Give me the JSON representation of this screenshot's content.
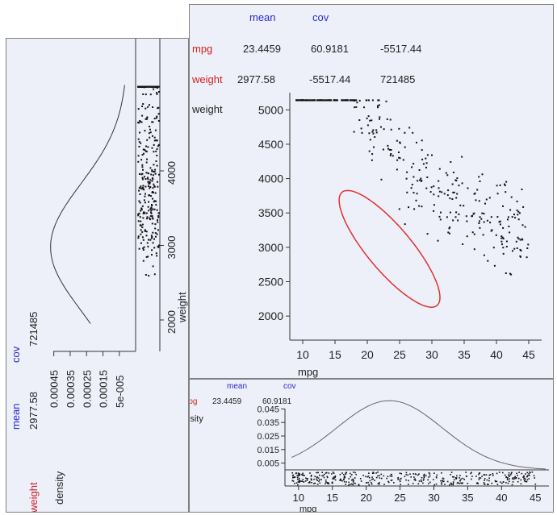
{
  "colors": {
    "background": "#eef0f9",
    "mean_label": "#2a2ad0",
    "variable_label": "#d02020",
    "text": "#222222",
    "ellipse": "#e03030",
    "points": "#111111"
  },
  "chart_data": [
    {
      "id": "weight-density",
      "type": "line",
      "orientation": "rotated",
      "header": {
        "mean_label": "mean",
        "cov_label": "cov",
        "variable": "weight",
        "mean": "2977.58",
        "cov": "721485"
      },
      "density_axis": {
        "label": "density",
        "ticks": [
          "0.00045",
          "0.00035",
          "0.00025",
          "0.00015",
          "5e-005"
        ],
        "tick_values": [
          0.00045,
          0.00035,
          0.00025,
          0.00015,
          5e-05
        ]
      },
      "value_axis": {
        "label": "weight",
        "ticks": [
          "2000",
          "3000",
          "4000"
        ],
        "tick_values": [
          2000,
          3000,
          4000
        ],
        "range": [
          1600,
          5200
        ]
      },
      "curve": {
        "mean": 2977.58,
        "sd": 849.4
      },
      "rug": "weight values of all cars"
    },
    {
      "id": "mpg-weight-scatter",
      "type": "scatter",
      "header": {
        "mean_label": "mean",
        "cov_label": "cov",
        "rows": [
          {
            "name": "mpg",
            "mean": "23.4459",
            "cov1": "60.9181",
            "cov2": "-5517.44"
          },
          {
            "name": "weight",
            "mean": "2977.58",
            "cov1": "-5517.44",
            "cov2": "721485"
          }
        ]
      },
      "xlabel": "mpg",
      "ylabel": "weight",
      "xticks": [
        "10",
        "15",
        "20",
        "25",
        "30",
        "35",
        "40",
        "45"
      ],
      "xtick_values": [
        10,
        15,
        20,
        25,
        30,
        35,
        40,
        45
      ],
      "yticks": [
        "2000",
        "2500",
        "3000",
        "3500",
        "4000",
        "4500",
        "5000"
      ],
      "ytick_values": [
        2000,
        2500,
        3000,
        3500,
        4000,
        4500,
        5000
      ],
      "xlim": [
        8,
        47
      ],
      "ylim": [
        1650,
        5250
      ],
      "ellipse": {
        "cx": 23.4459,
        "cy": 2977.58,
        "sxx": 60.9181,
        "sxy": -5517.44,
        "syy": 721485,
        "k": 1
      }
    },
    {
      "id": "mpg-density",
      "type": "line",
      "header": {
        "mean_label": "mean",
        "cov_label": "cov",
        "variable": "mpg",
        "mean": "23.4459",
        "cov": "60.9181"
      },
      "ylabel": "density",
      "yticks": [
        "0.045",
        "0.035",
        "0.025",
        "0.015",
        "0.005"
      ],
      "ytick_values": [
        0.045,
        0.035,
        0.025,
        0.015,
        0.005
      ],
      "xlabel": "mpg",
      "xticks": [
        "10",
        "15",
        "20",
        "25",
        "30",
        "35",
        "40",
        "45"
      ],
      "xtick_values": [
        10,
        15,
        20,
        25,
        30,
        35,
        40,
        45
      ],
      "xlim": [
        8,
        47
      ],
      "curve": {
        "mean": 23.4459,
        "sd": 7.805
      }
    }
  ]
}
